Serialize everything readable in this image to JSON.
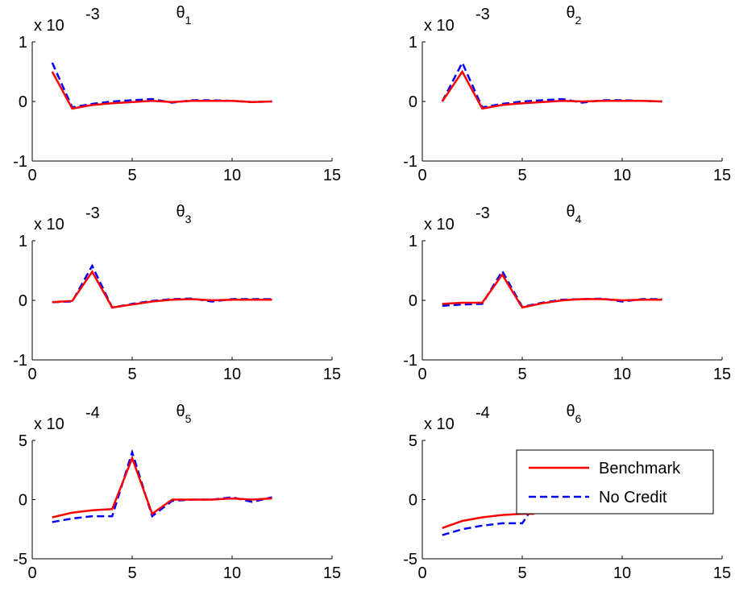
{
  "chart_data": [
    {
      "type": "line",
      "title": "θ1",
      "title_main": "θ",
      "title_sub": "1",
      "exponent_label": "x 10",
      "exponent_power": "-3",
      "xlim": [
        0,
        15
      ],
      "ylim": [
        -1,
        1
      ],
      "xticks": [
        "0",
        "5",
        "10",
        "15"
      ],
      "yticks": [
        "-1",
        "0",
        "1"
      ],
      "yscale": 0.001,
      "x": [
        1,
        2,
        3,
        4,
        5,
        6,
        7,
        8,
        9,
        10,
        11,
        12
      ],
      "series": [
        {
          "name": "Benchmark",
          "color": "#ff0000",
          "style": "solid",
          "values": [
            0.0005,
            -0.00012,
            -6e-05,
            -3e-05,
            -1e-05,
            1e-05,
            -1e-05,
            1e-05,
            1e-05,
            1e-05,
            -1e-05,
            0
          ]
        },
        {
          "name": "No Credit",
          "color": "#0000ff",
          "style": "dashed",
          "values": [
            0.00065,
            -0.0001,
            -4e-05,
            0,
            2e-05,
            4e-05,
            -2e-05,
            2e-05,
            2e-05,
            1e-05,
            -1e-05,
            0
          ]
        }
      ]
    },
    {
      "type": "line",
      "title": "θ2",
      "title_main": "θ",
      "title_sub": "2",
      "exponent_label": "x 10",
      "exponent_power": "-3",
      "xlim": [
        0,
        15
      ],
      "ylim": [
        -1,
        1
      ],
      "xticks": [
        "0",
        "5",
        "10",
        "15"
      ],
      "yticks": [
        "-1",
        "0",
        "1"
      ],
      "yscale": 0.001,
      "x": [
        1,
        2,
        3,
        4,
        5,
        6,
        7,
        8,
        9,
        10,
        11,
        12
      ],
      "series": [
        {
          "name": "Benchmark",
          "color": "#ff0000",
          "style": "solid",
          "values": [
            0,
            0.0005,
            -0.00012,
            -6e-05,
            -3e-05,
            -1e-05,
            1e-05,
            0,
            1e-05,
            1e-05,
            1e-05,
            0
          ]
        },
        {
          "name": "No Credit",
          "color": "#0000ff",
          "style": "dashed",
          "values": [
            0,
            0.00065,
            -0.0001,
            -4e-05,
            0,
            2e-05,
            4e-05,
            -2e-05,
            2e-05,
            2e-05,
            1e-05,
            0
          ]
        }
      ]
    },
    {
      "type": "line",
      "title": "θ3",
      "title_main": "θ",
      "title_sub": "3",
      "exponent_label": "x 10",
      "exponent_power": "-3",
      "xlim": [
        0,
        15
      ],
      "ylim": [
        -1,
        1
      ],
      "xticks": [
        "0",
        "5",
        "10",
        "15"
      ],
      "yticks": [
        "-1",
        "0",
        "1"
      ],
      "yscale": 0.001,
      "x": [
        1,
        2,
        3,
        4,
        5,
        6,
        7,
        8,
        9,
        10,
        11,
        12
      ],
      "series": [
        {
          "name": "Benchmark",
          "color": "#ff0000",
          "style": "solid",
          "values": [
            -3e-05,
            -1e-05,
            0.00048,
            -0.00012,
            -7e-05,
            -2e-05,
            1e-05,
            2e-05,
            0,
            1e-05,
            1e-05,
            1e-05
          ]
        },
        {
          "name": "No Credit",
          "color": "#0000ff",
          "style": "dashed",
          "values": [
            -3e-05,
            -2e-05,
            0.00058,
            -0.00012,
            -6e-05,
            -1e-05,
            2e-05,
            3e-05,
            -2e-05,
            2e-05,
            2e-05,
            2e-05
          ]
        }
      ]
    },
    {
      "type": "line",
      "title": "θ4",
      "title_main": "θ",
      "title_sub": "4",
      "exponent_label": "x 10",
      "exponent_power": "-3",
      "xlim": [
        0,
        15
      ],
      "ylim": [
        -1,
        1
      ],
      "xticks": [
        "0",
        "5",
        "10",
        "15"
      ],
      "yticks": [
        "-1",
        "0",
        "1"
      ],
      "yscale": 0.001,
      "x": [
        1,
        2,
        3,
        4,
        5,
        6,
        7,
        8,
        9,
        10,
        11,
        12
      ],
      "series": [
        {
          "name": "Benchmark",
          "color": "#ff0000",
          "style": "solid",
          "values": [
            -6e-05,
            -4e-05,
            -4e-05,
            0.00043,
            -0.00012,
            -5e-05,
            0,
            2e-05,
            2e-05,
            0,
            1e-05,
            1e-05
          ]
        },
        {
          "name": "No Credit",
          "color": "#0000ff",
          "style": "dashed",
          "values": [
            -9e-05,
            -7e-05,
            -6e-05,
            0.00049,
            -0.00011,
            -4e-05,
            1e-05,
            2e-05,
            3e-05,
            -2e-05,
            2e-05,
            2e-05
          ]
        }
      ]
    },
    {
      "type": "line",
      "title": "θ5",
      "title_main": "θ",
      "title_sub": "5",
      "exponent_label": "x 10",
      "exponent_power": "-4",
      "xlim": [
        0,
        15
      ],
      "ylim": [
        -5,
        5
      ],
      "xticks": [
        "0",
        "5",
        "10",
        "15"
      ],
      "yticks": [
        "-5",
        "0",
        "5"
      ],
      "yscale": 0.0001,
      "x": [
        1,
        2,
        3,
        4,
        5,
        6,
        7,
        8,
        9,
        10,
        11,
        12
      ],
      "series": [
        {
          "name": "Benchmark",
          "color": "#ff0000",
          "style": "solid",
          "values": [
            -0.00015,
            -0.00011,
            -9e-05,
            -8e-05,
            0.00035,
            -0.00012,
            0,
            0,
            0,
            1e-05,
            0,
            1e-05
          ]
        },
        {
          "name": "No Credit",
          "color": "#0000ff",
          "style": "dashed",
          "values": [
            -0.00019,
            -0.00016,
            -0.00014,
            -0.00014,
            0.0004,
            -0.00014,
            -1e-05,
            0,
            0,
            2e-05,
            -2e-05,
            2e-05
          ]
        }
      ]
    },
    {
      "type": "line",
      "title": "θ6",
      "title_main": "θ",
      "title_sub": "6",
      "exponent_label": "x 10",
      "exponent_power": "-4",
      "xlim": [
        0,
        15
      ],
      "ylim": [
        -5,
        5
      ],
      "xticks": [
        "0",
        "5",
        "10",
        "15"
      ],
      "yticks": [
        "-5",
        "0",
        "5"
      ],
      "yscale": 0.0001,
      "x": [
        1,
        2,
        3,
        4,
        5,
        5.6
      ],
      "series": [
        {
          "name": "Benchmark",
          "color": "#ff0000",
          "style": "solid",
          "values": [
            -0.00024,
            -0.00018,
            -0.00015,
            -0.00013,
            -0.00012,
            -0.00012
          ]
        },
        {
          "name": "No Credit",
          "color": "#0000ff",
          "style": "dashed",
          "values": [
            -0.0003,
            -0.00025,
            -0.00022,
            -0.0002,
            -0.0002,
            -5e-05
          ]
        }
      ],
      "legend": {
        "position": "top-right",
        "entries": [
          "Benchmark",
          "No Credit"
        ]
      }
    }
  ]
}
